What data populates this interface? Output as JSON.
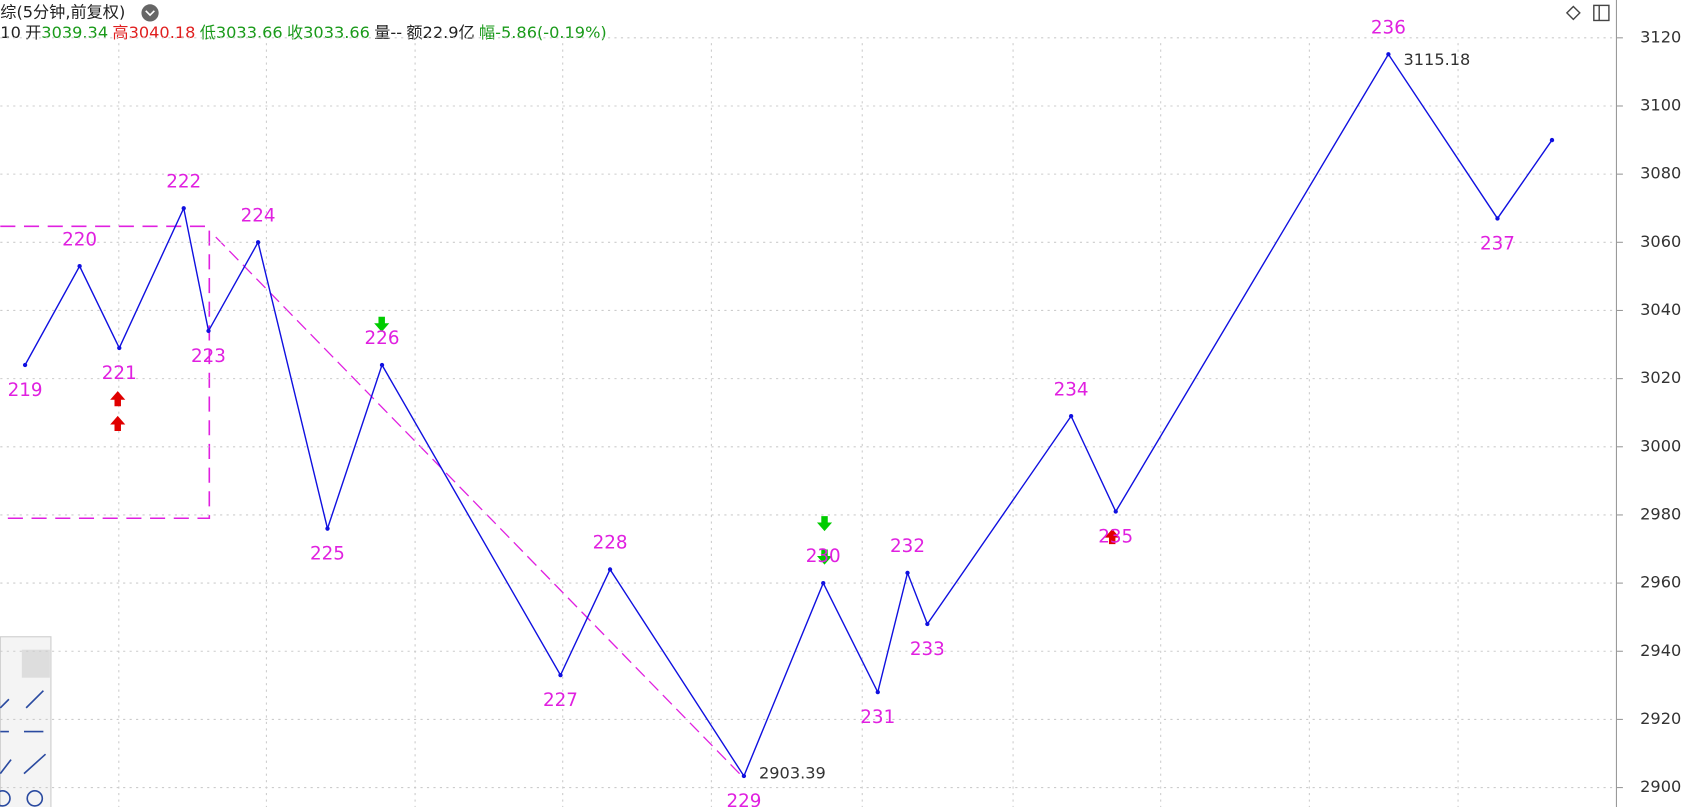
{
  "header": {
    "title": "综(5分钟,前复权)",
    "quote": [
      {
        "label": "10"
      },
      {
        "label": "开",
        "value": "3039.34"
      },
      {
        "label": "高",
        "value": "3040.18"
      },
      {
        "label": "低",
        "value": "3033.66"
      },
      {
        "label": "收",
        "value": "3033.66"
      },
      {
        "label": "量",
        "value": "--"
      },
      {
        "label": "额",
        "value": "22.9亿"
      },
      {
        "label": "幅",
        "value": "-5.86(-0.19%)"
      }
    ]
  },
  "chart_data": {
    "type": "line",
    "x": [
      5,
      16,
      24,
      37,
      42,
      52,
      66,
      77,
      113,
      123,
      150,
      166,
      177,
      183,
      187,
      216,
      225,
      280,
      302,
      313
    ],
    "values": [
      3024,
      3053,
      3029,
      3070,
      3034,
      3060,
      2976,
      3024,
      2933,
      2964,
      2903.39,
      2960,
      2928,
      2963,
      2948,
      3009,
      2981,
      3115.18,
      3067,
      3090
    ],
    "labels": [
      "219",
      "220",
      "221",
      "222",
      "223",
      "224",
      "225",
      "226",
      "227",
      "228",
      "229",
      "230",
      "231",
      "232",
      "233",
      "234",
      "235",
      "236",
      "237",
      null
    ],
    "value_labels": [
      null,
      null,
      null,
      null,
      null,
      null,
      null,
      null,
      null,
      null,
      "2903.39",
      null,
      null,
      null,
      null,
      null,
      null,
      "3115.18",
      null,
      null
    ],
    "color": "#1010e0",
    "xlim": [
      0,
      326
    ],
    "ylim": [
      2894.3,
      3131.1
    ],
    "yticks": [
      2900,
      2920,
      2940,
      2960,
      2980,
      3000,
      3020,
      3040,
      3060,
      3080,
      3100,
      3120
    ],
    "grid": true
  }
}
